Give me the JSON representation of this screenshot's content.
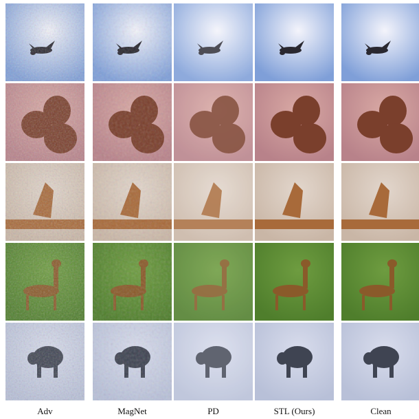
{
  "figure": {
    "columns": [
      {
        "label": "Adv",
        "style": "noisy"
      },
      {
        "label": "MagNet",
        "style": "noisy-mild"
      },
      {
        "label": "PD",
        "style": "smooth"
      },
      {
        "label": "STL (Ours)",
        "style": "clean-ish"
      },
      {
        "label": "Clean",
        "style": "clean"
      }
    ],
    "rows": [
      {
        "subject": "plane-in-sky",
        "bg": "#7f9fd8",
        "center": "#f4f4fb",
        "object": "#2a2830"
      },
      {
        "subject": "dogs",
        "bg": "#b8828a",
        "center": "#d9a9a4",
        "object": "#7a3f2c"
      },
      {
        "subject": "bird-on-rocks",
        "bg": "#c9b6a6",
        "center": "#e2d6cc",
        "object": "#a86a3a"
      },
      {
        "subject": "deer-in-grass",
        "bg": "#4f7e2c",
        "center": "#6e9c40",
        "object": "#8a5a2a"
      },
      {
        "subject": "animal-in-snow",
        "bg": "#b8c0d8",
        "center": "#d8dcec",
        "object": "#3f4452"
      }
    ]
  }
}
